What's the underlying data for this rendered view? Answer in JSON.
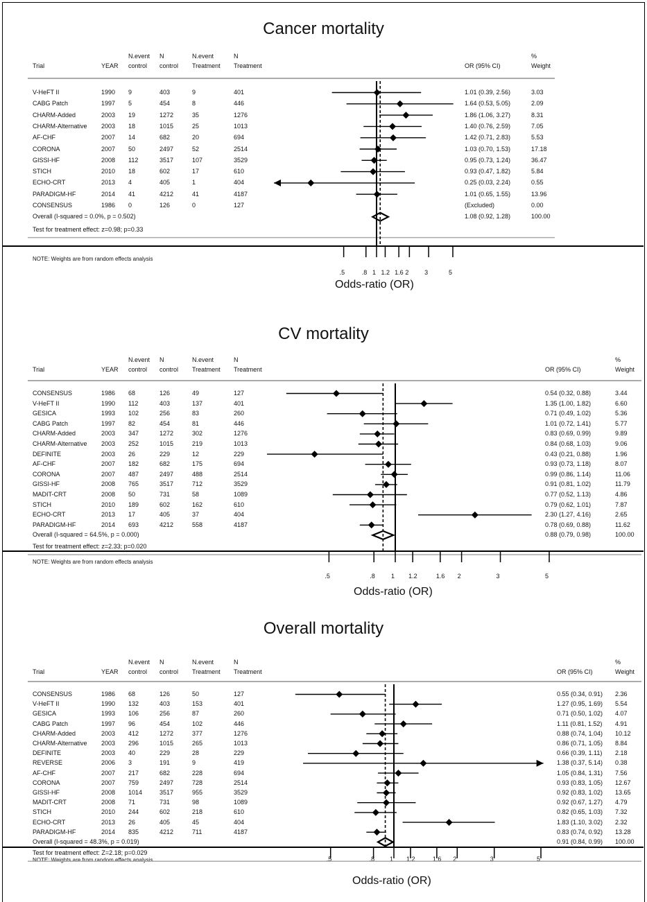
{
  "columns": {
    "trial": "Trial",
    "year": "YEAR",
    "nevent_control": "N.event\ncontrol",
    "n_control": "N\ncontrol",
    "nevent_treatment": "N.event\nTreatment",
    "n_treatment": "N\nTreatment",
    "or": "OR (95% CI)",
    "weight": "%\nWeight"
  },
  "chart_data": [
    {
      "type": "forest",
      "title": "Cancer mortality",
      "xlabel": "Odds-ratio (OR)",
      "xscale": "log",
      "xticks": [
        ".5",
        ".8",
        "1",
        "1.2",
        "1.6",
        "2",
        "3",
        "5"
      ],
      "xtick_values": [
        0.5,
        0.8,
        1,
        1.2,
        1.6,
        2,
        3,
        5
      ],
      "xlim": [
        0.2,
        5
      ],
      "null_line": 1,
      "pooled_line": 1.08,
      "note": "NOTE: Weights are from random effects analysis",
      "overall_label": "Overall  (I-squared = 0.0%, p = 0.502)",
      "overall": {
        "or": 1.08,
        "lo": 0.92,
        "hi": 1.28,
        "ci_text": "1.08 (0.92, 1.28)",
        "weight": "100.00"
      },
      "test_text": "Test for treatment effect: z=0.98; p=0.33",
      "rows": [
        {
          "trial": "V-HeFT II",
          "year": "1990",
          "ec": "9",
          "nc": "403",
          "et": "9",
          "nt": "401",
          "or": 1.01,
          "lo": 0.39,
          "hi": 2.56,
          "ci_text": "1.01 (0.39, 2.56)",
          "weight": "3.03"
        },
        {
          "trial": "CABG Patch",
          "year": "1997",
          "ec": "5",
          "nc": "454",
          "et": "8",
          "nt": "446",
          "or": 1.64,
          "lo": 0.53,
          "hi": 5.05,
          "ci_text": "1.64 (0.53, 5.05)",
          "weight": "2.09"
        },
        {
          "trial": "CHARM-Added",
          "year": "2003",
          "ec": "19",
          "nc": "1272",
          "et": "35",
          "nt": "1276",
          "or": 1.86,
          "lo": 1.06,
          "hi": 3.27,
          "ci_text": "1.86 (1.06, 3.27)",
          "weight": "8.31"
        },
        {
          "trial": "CHARM-Alternative",
          "year": "2003",
          "ec": "18",
          "nc": "1015",
          "et": "25",
          "nt": "1013",
          "or": 1.4,
          "lo": 0.76,
          "hi": 2.59,
          "ci_text": "1.40 (0.76, 2.59)",
          "weight": "7.05"
        },
        {
          "trial": "AF-CHF",
          "year": "2007",
          "ec": "14",
          "nc": "682",
          "et": "20",
          "nt": "694",
          "or": 1.42,
          "lo": 0.71,
          "hi": 2.83,
          "ci_text": "1.42 (0.71, 2.83)",
          "weight": "5.53"
        },
        {
          "trial": "CORONA",
          "year": "2007",
          "ec": "50",
          "nc": "2497",
          "et": "52",
          "nt": "2514",
          "or": 1.03,
          "lo": 0.7,
          "hi": 1.53,
          "ci_text": "1.03 (0.70, 1.53)",
          "weight": "17.18"
        },
        {
          "trial": "GISSI-HF",
          "year": "2008",
          "ec": "112",
          "nc": "3517",
          "et": "107",
          "nt": "3529",
          "or": 0.95,
          "lo": 0.73,
          "hi": 1.24,
          "ci_text": "0.95 (0.73, 1.24)",
          "weight": "36.47"
        },
        {
          "trial": "STICH",
          "year": "2010",
          "ec": "18",
          "nc": "602",
          "et": "17",
          "nt": "610",
          "or": 0.93,
          "lo": 0.47,
          "hi": 1.82,
          "ci_text": "0.93 (0.47, 1.82)",
          "weight": "5.84"
        },
        {
          "trial": "ECHO-CRT",
          "year": "2013",
          "ec": "4",
          "nc": "405",
          "et": "1",
          "nt": "404",
          "or": 0.25,
          "lo": 0.03,
          "hi": 2.24,
          "ci_text": "0.25 (0.03, 2.24)",
          "weight": "0.55",
          "arrow_left": true
        },
        {
          "trial": "PARADIGM-HF",
          "year": "2014",
          "ec": "41",
          "nc": "4212",
          "et": "41",
          "nt": "4187",
          "or": 1.01,
          "lo": 0.65,
          "hi": 1.55,
          "ci_text": "1.01 (0.65, 1.55)",
          "weight": "13.96"
        },
        {
          "trial": "CONSENSUS",
          "year": "1986",
          "ec": "0",
          "nc": "126",
          "et": "0",
          "nt": "127",
          "or": null,
          "lo": null,
          "hi": null,
          "ci_text": "(Excluded)",
          "weight": "0.00"
        }
      ]
    },
    {
      "type": "forest",
      "title": "CV mortality",
      "xlabel": "Odds-ratio (OR)",
      "xscale": "log",
      "xticks": [
        ".5",
        ".8",
        "1",
        "1.2",
        "1.6",
        "2",
        "3",
        "5"
      ],
      "xtick_values": [
        0.5,
        0.8,
        1,
        1.2,
        1.6,
        2,
        3,
        5
      ],
      "xlim": [
        0.4,
        5
      ],
      "null_line": 1,
      "pooled_line": 0.88,
      "note": "NOTE: Weights are from random effects analysis",
      "overall_label": "Overall  (I-squared = 64.5%, p = 0.000)",
      "overall": {
        "or": 0.88,
        "lo": 0.79,
        "hi": 0.98,
        "ci_text": "0.88 (0.79, 0.98)",
        "weight": "100.00"
      },
      "test_text": "Test for treatment effect: z=2.33; p=0.020",
      "rows": [
        {
          "trial": "CONSENSUS",
          "year": "1986",
          "ec": "68",
          "nc": "126",
          "et": "49",
          "nt": "127",
          "or": 0.54,
          "lo": 0.32,
          "hi": 0.88,
          "ci_text": "0.54 (0.32, 0.88)",
          "weight": "3.44"
        },
        {
          "trial": "V-HeFT II",
          "year": "1990",
          "ec": "112",
          "nc": "403",
          "et": "137",
          "nt": "401",
          "or": 1.35,
          "lo": 1.0,
          "hi": 1.82,
          "ci_text": "1.35 (1.00, 1.82)",
          "weight": "6.60"
        },
        {
          "trial": "GESICA",
          "year": "1993",
          "ec": "102",
          "nc": "256",
          "et": "83",
          "nt": "260",
          "or": 0.71,
          "lo": 0.49,
          "hi": 1.02,
          "ci_text": "0.71 (0.49, 1.02)",
          "weight": "5.36"
        },
        {
          "trial": "CABG Patch",
          "year": "1997",
          "ec": "82",
          "nc": "454",
          "et": "81",
          "nt": "446",
          "or": 1.01,
          "lo": 0.72,
          "hi": 1.41,
          "ci_text": "1.01 (0.72, 1.41)",
          "weight": "5.77"
        },
        {
          "trial": "CHARM-Added",
          "year": "2003",
          "ec": "347",
          "nc": "1272",
          "et": "302",
          "nt": "1276",
          "or": 0.83,
          "lo": 0.69,
          "hi": 0.99,
          "ci_text": "0.83 (0.69, 0.99)",
          "weight": "9.89"
        },
        {
          "trial": "CHARM-Alternative",
          "year": "2003",
          "ec": "252",
          "nc": "1015",
          "et": "219",
          "nt": "1013",
          "or": 0.84,
          "lo": 0.68,
          "hi": 1.03,
          "ci_text": "0.84 (0.68, 1.03)",
          "weight": "9.06"
        },
        {
          "trial": "DEFINITE",
          "year": "2003",
          "ec": "26",
          "nc": "229",
          "et": "12",
          "nt": "229",
          "or": 0.43,
          "lo": 0.21,
          "hi": 0.88,
          "ci_text": "0.43 (0.21, 0.88)",
          "weight": "1.96"
        },
        {
          "trial": "AF-CHF",
          "year": "2007",
          "ec": "182",
          "nc": "682",
          "et": "175",
          "nt": "694",
          "or": 0.93,
          "lo": 0.73,
          "hi": 1.18,
          "ci_text": "0.93 (0.73, 1.18)",
          "weight": "8.07"
        },
        {
          "trial": "CORONA",
          "year": "2007",
          "ec": "487",
          "nc": "2497",
          "et": "488",
          "nt": "2514",
          "or": 0.99,
          "lo": 0.86,
          "hi": 1.14,
          "ci_text": "0.99 (0.86, 1.14)",
          "weight": "11.06"
        },
        {
          "trial": "GISSI-HF",
          "year": "2008",
          "ec": "765",
          "nc": "3517",
          "et": "712",
          "nt": "3529",
          "or": 0.91,
          "lo": 0.81,
          "hi": 1.02,
          "ci_text": "0.91 (0.81, 1.02)",
          "weight": "11.79"
        },
        {
          "trial": "MADIT-CRT",
          "year": "2008",
          "ec": "50",
          "nc": "731",
          "et": "58",
          "nt": "1089",
          "or": 0.77,
          "lo": 0.52,
          "hi": 1.13,
          "ci_text": "0.77 (0.52, 1.13)",
          "weight": "4.86"
        },
        {
          "trial": "STICH",
          "year": "2010",
          "ec": "189",
          "nc": "602",
          "et": "162",
          "nt": "610",
          "or": 0.79,
          "lo": 0.62,
          "hi": 1.01,
          "ci_text": "0.79 (0.62, 1.01)",
          "weight": "7.87"
        },
        {
          "trial": "ECHO-CRT",
          "year": "2013",
          "ec": "17",
          "nc": "405",
          "et": "37",
          "nt": "404",
          "or": 2.3,
          "lo": 1.27,
          "hi": 4.16,
          "ci_text": "2.30 (1.27, 4.16)",
          "weight": "2.65"
        },
        {
          "trial": "PARADIGM-HF",
          "year": "2014",
          "ec": "693",
          "nc": "4212",
          "et": "558",
          "nt": "4187",
          "or": 0.78,
          "lo": 0.69,
          "hi": 0.88,
          "ci_text": "0.78 (0.69, 0.88)",
          "weight": "11.62"
        }
      ]
    },
    {
      "type": "forest",
      "title": "Overall mortality",
      "xlabel": "Odds-ratio (OR)",
      "xscale": "log",
      "xticks": [
        ".5",
        ".8",
        "1",
        "1.2",
        "1.6",
        "2",
        "3",
        "5"
      ],
      "xtick_values": [
        0.5,
        0.8,
        1,
        1.2,
        1.6,
        2,
        3,
        5
      ],
      "xlim": [
        0.35,
        5
      ],
      "null_line": 1,
      "pooled_line": 0.91,
      "note": "NOTE: Weights are from random effects analysis",
      "overall_label": "Overall  (I-squared = 48.3%, p = 0.019)",
      "overall": {
        "or": 0.91,
        "lo": 0.84,
        "hi": 0.99,
        "ci_text": "0.91 (0.84, 0.99)",
        "weight": "100.00"
      },
      "test_text": "Test for treatment effect: Z=2.18; p=0.029",
      "rows": [
        {
          "trial": "CONSENSUS",
          "year": "1986",
          "ec": "68",
          "nc": "126",
          "et": "50",
          "nt": "127",
          "or": 0.55,
          "lo": 0.34,
          "hi": 0.91,
          "ci_text": "0.55 (0.34, 0.91)",
          "weight": "2.36"
        },
        {
          "trial": "V-HeFT II",
          "year": "1990",
          "ec": "132",
          "nc": "403",
          "et": "153",
          "nt": "401",
          "or": 1.27,
          "lo": 0.95,
          "hi": 1.69,
          "ci_text": "1.27 (0.95, 1.69)",
          "weight": "5.54"
        },
        {
          "trial": "GESICA",
          "year": "1993",
          "ec": "106",
          "nc": "256",
          "et": "87",
          "nt": "260",
          "or": 0.71,
          "lo": 0.5,
          "hi": 1.02,
          "ci_text": "0.71 (0.50, 1.02)",
          "weight": "4.07"
        },
        {
          "trial": "CABG Patch",
          "year": "1997",
          "ec": "96",
          "nc": "454",
          "et": "102",
          "nt": "446",
          "or": 1.11,
          "lo": 0.81,
          "hi": 1.52,
          "ci_text": "1.11 (0.81, 1.52)",
          "weight": "4.91"
        },
        {
          "trial": "CHARM-Added",
          "year": "2003",
          "ec": "412",
          "nc": "1272",
          "et": "377",
          "nt": "1276",
          "or": 0.88,
          "lo": 0.74,
          "hi": 1.04,
          "ci_text": "0.88 (0.74, 1.04)",
          "weight": "10.12"
        },
        {
          "trial": "CHARM-Alternative",
          "year": "2003",
          "ec": "296",
          "nc": "1015",
          "et": "265",
          "nt": "1013",
          "or": 0.86,
          "lo": 0.71,
          "hi": 1.05,
          "ci_text": "0.86 (0.71, 1.05)",
          "weight": "8.84"
        },
        {
          "trial": "DEFINITE",
          "year": "2003",
          "ec": "40",
          "nc": "229",
          "et": "28",
          "nt": "229",
          "or": 0.66,
          "lo": 0.39,
          "hi": 1.11,
          "ci_text": "0.66 (0.39, 1.11)",
          "weight": "2.18"
        },
        {
          "trial": "REVERSE",
          "year": "2006",
          "ec": "3",
          "nc": "191",
          "et": "9",
          "nt": "419",
          "or": 1.38,
          "lo": 0.37,
          "hi": 5.14,
          "ci_text": "1.38 (0.37, 5.14)",
          "weight": "0.38",
          "arrow_right": true
        },
        {
          "trial": "AF-CHF",
          "year": "2007",
          "ec": "217",
          "nc": "682",
          "et": "228",
          "nt": "694",
          "or": 1.05,
          "lo": 0.84,
          "hi": 1.31,
          "ci_text": "1.05 (0.84, 1.31)",
          "weight": "7.56"
        },
        {
          "trial": "CORONA",
          "year": "2007",
          "ec": "759",
          "nc": "2497",
          "et": "728",
          "nt": "2514",
          "or": 0.93,
          "lo": 0.83,
          "hi": 1.05,
          "ci_text": "0.93 (0.83, 1.05)",
          "weight": "12.67"
        },
        {
          "trial": "GISSI-HF",
          "year": "2008",
          "ec": "1014",
          "nc": "3517",
          "et": "955",
          "nt": "3529",
          "or": 0.92,
          "lo": 0.83,
          "hi": 1.02,
          "ci_text": "0.92 (0.83, 1.02)",
          "weight": "13.65"
        },
        {
          "trial": "MADIT-CRT",
          "year": "2008",
          "ec": "71",
          "nc": "731",
          "et": "98",
          "nt": "1089",
          "or": 0.92,
          "lo": 0.67,
          "hi": 1.27,
          "ci_text": "0.92 (0.67, 1.27)",
          "weight": "4.79"
        },
        {
          "trial": "STICH",
          "year": "2010",
          "ec": "244",
          "nc": "602",
          "et": "218",
          "nt": "610",
          "or": 0.82,
          "lo": 0.65,
          "hi": 1.03,
          "ci_text": "0.82 (0.65, 1.03)",
          "weight": "7.32"
        },
        {
          "trial": "ECHO-CRT",
          "year": "2013",
          "ec": "26",
          "nc": "405",
          "et": "45",
          "nt": "404",
          "or": 1.83,
          "lo": 1.1,
          "hi": 3.02,
          "ci_text": "1.83 (1.10, 3.02)",
          "weight": "2.32"
        },
        {
          "trial": "PARADIGM-HF",
          "year": "2014",
          "ec": "835",
          "nc": "4212",
          "et": "711",
          "nt": "4187",
          "or": 0.83,
          "lo": 0.74,
          "hi": 0.92,
          "ci_text": "0.83 (0.74, 0.92)",
          "weight": "13.28"
        }
      ]
    }
  ]
}
